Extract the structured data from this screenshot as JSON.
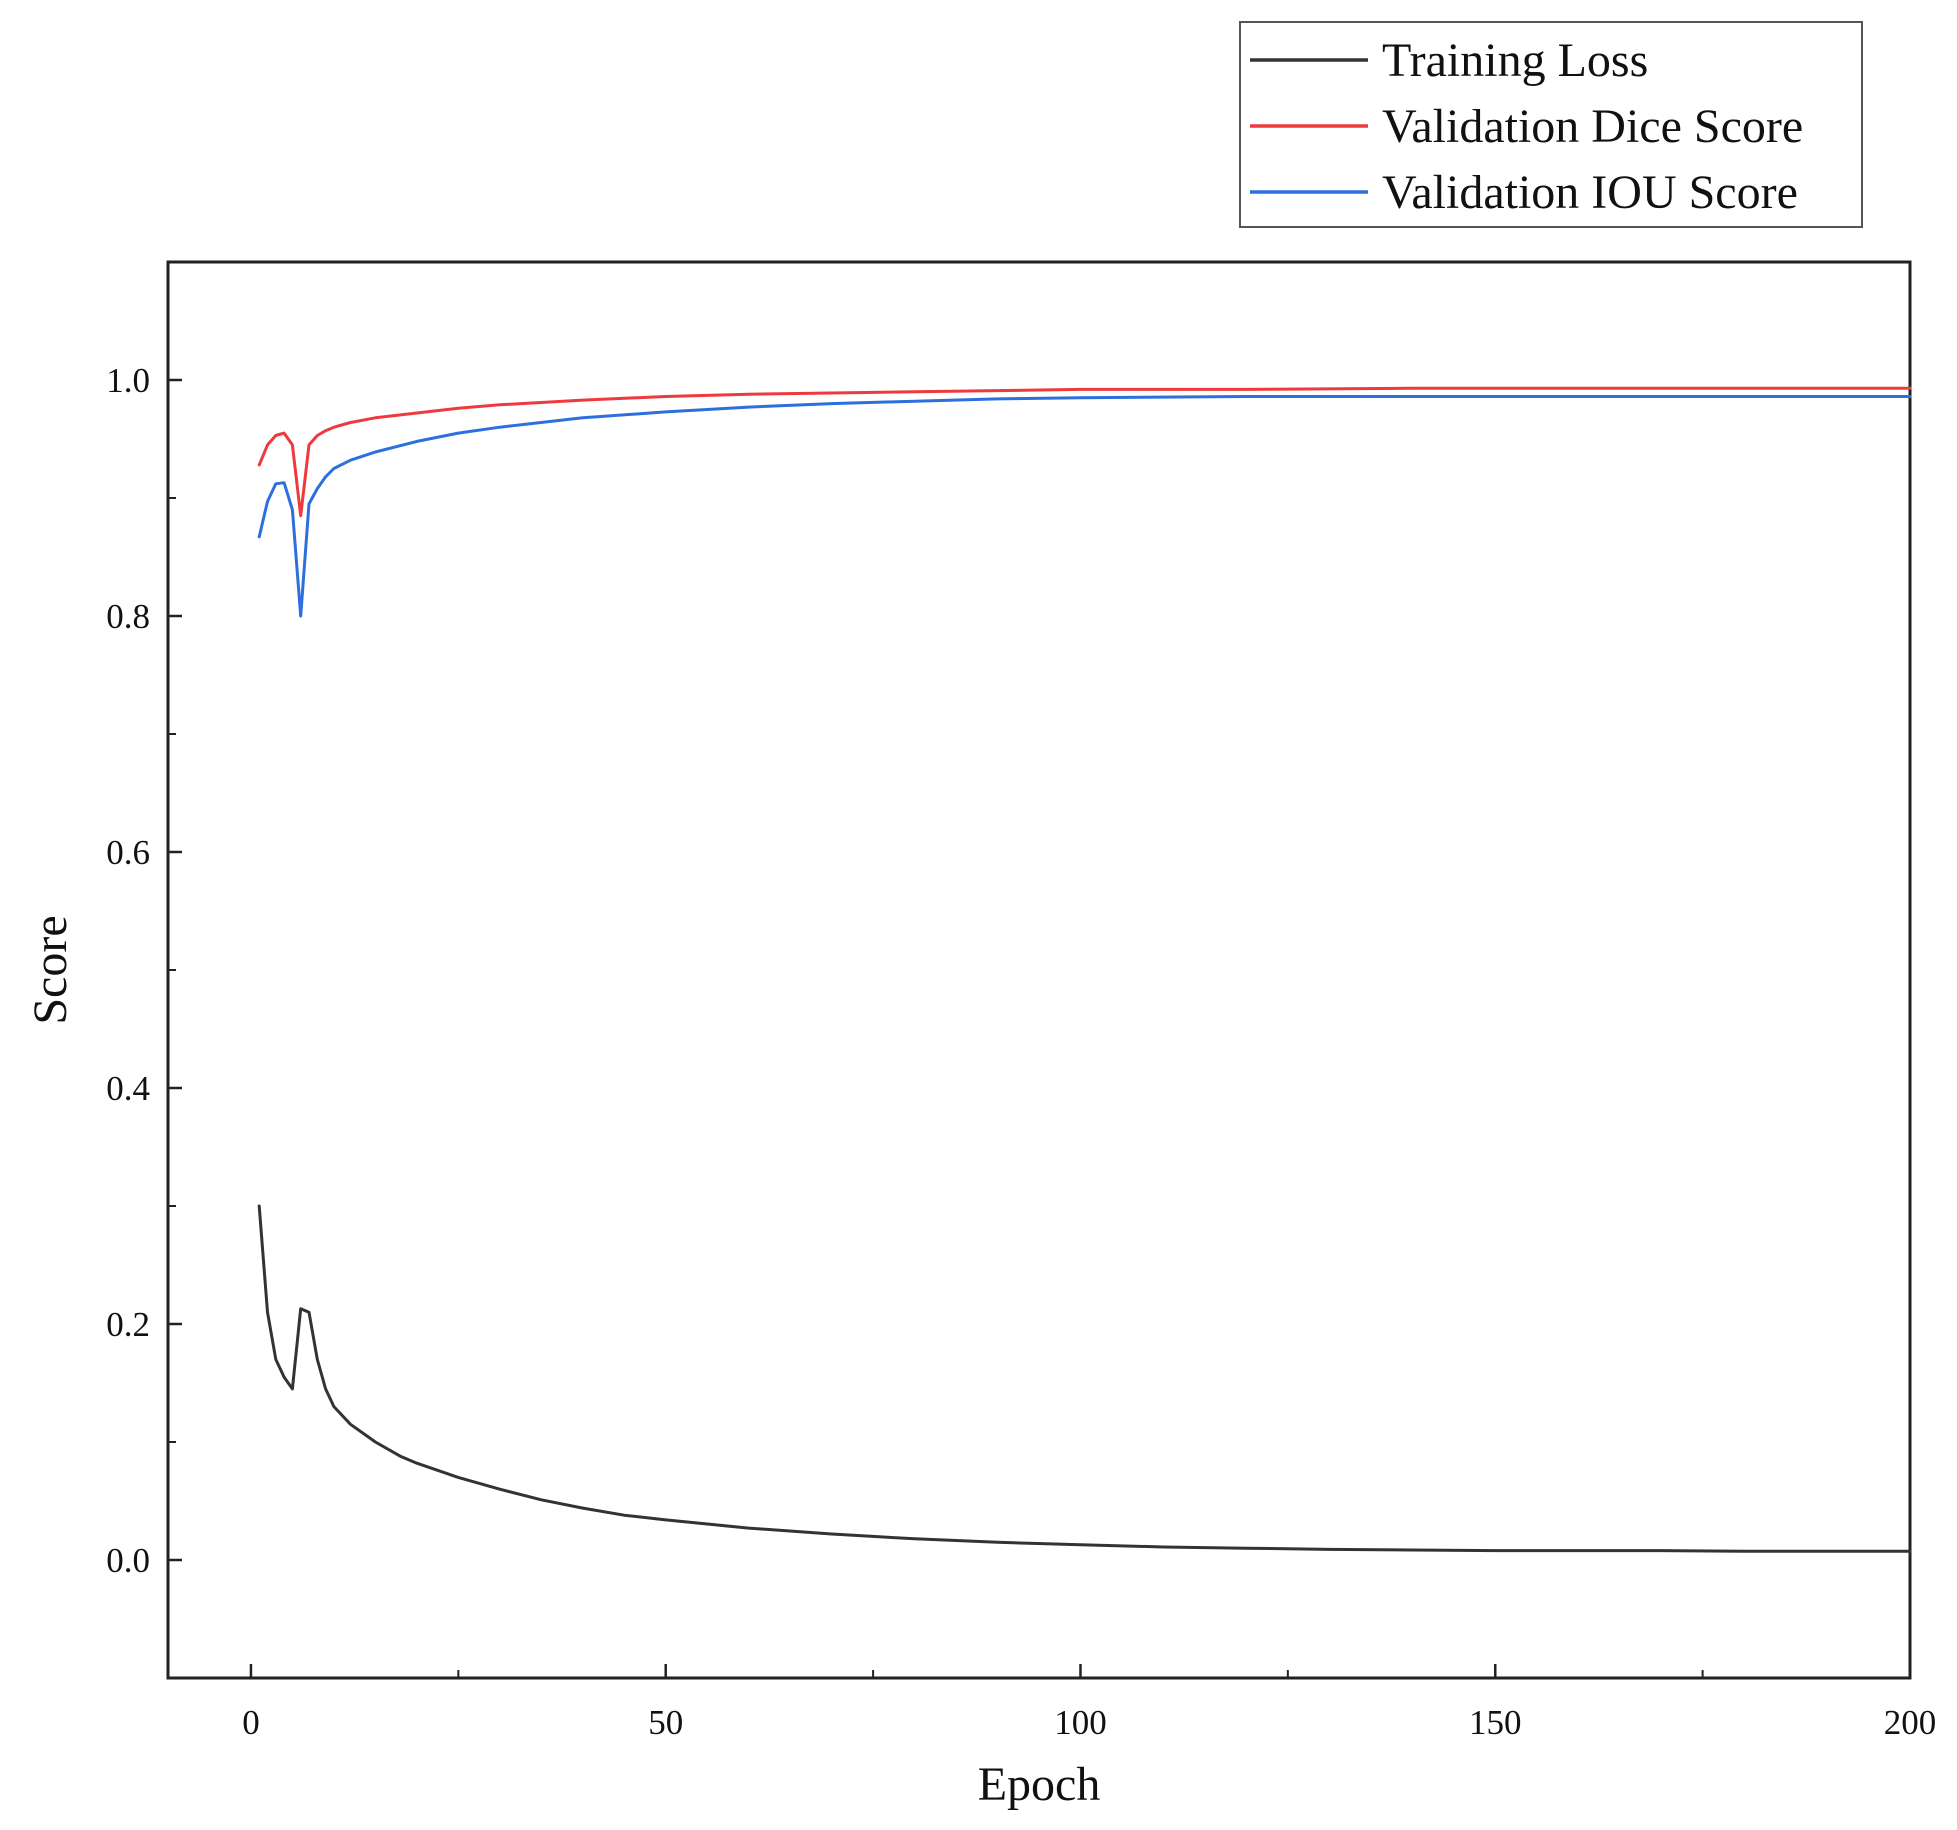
{
  "chart_data": {
    "type": "line",
    "title": "",
    "xlabel": "Epoch",
    "ylabel": "Score",
    "xlim": [
      -10,
      200
    ],
    "ylim": [
      -0.1,
      1.1
    ],
    "x_ticks": [
      {
        "value": 0,
        "label": "0"
      },
      {
        "value": 50,
        "label": "50"
      },
      {
        "value": 100,
        "label": "100"
      },
      {
        "value": 150,
        "label": "150"
      },
      {
        "value": 200,
        "label": "200"
      }
    ],
    "x_minor_ticks": [
      25,
      75,
      125,
      175
    ],
    "y_ticks": [
      {
        "value": 0.0,
        "label": "0.0"
      },
      {
        "value": 0.2,
        "label": "0.2"
      },
      {
        "value": 0.4,
        "label": "0.4"
      },
      {
        "value": 0.6,
        "label": "0.6"
      },
      {
        "value": 0.8,
        "label": "0.8"
      },
      {
        "value": 1.0,
        "label": "1.0"
      }
    ],
    "y_minor_ticks": [
      -0.1,
      0.1,
      0.3,
      0.5,
      0.7,
      0.9,
      1.1
    ],
    "grid": false,
    "legend_position": "top-right, above plot",
    "series": [
      {
        "name": "Training Loss",
        "color": "#333333",
        "x": [
          1,
          2,
          3,
          4,
          5,
          6,
          7,
          8,
          9,
          10,
          12,
          15,
          18,
          20,
          25,
          30,
          35,
          40,
          45,
          50,
          60,
          70,
          80,
          90,
          100,
          110,
          120,
          130,
          140,
          150,
          160,
          170,
          180,
          190,
          200
        ],
        "y": [
          0.3,
          0.21,
          0.17,
          0.155,
          0.145,
          0.213,
          0.21,
          0.17,
          0.145,
          0.13,
          0.115,
          0.1,
          0.088,
          0.082,
          0.07,
          0.06,
          0.051,
          0.044,
          0.038,
          0.034,
          0.027,
          0.022,
          0.018,
          0.015,
          0.013,
          0.011,
          0.01,
          0.009,
          0.0085,
          0.008,
          0.008,
          0.008,
          0.0075,
          0.0075,
          0.0075
        ]
      },
      {
        "name": "Validation Dice Score",
        "color": "#ee3a3e",
        "x": [
          1,
          2,
          3,
          4,
          5,
          6,
          7,
          8,
          9,
          10,
          12,
          15,
          20,
          25,
          30,
          40,
          50,
          60,
          70,
          80,
          90,
          100,
          120,
          140,
          160,
          180,
          200
        ],
        "y": [
          0.928,
          0.945,
          0.953,
          0.955,
          0.945,
          0.885,
          0.945,
          0.953,
          0.957,
          0.96,
          0.964,
          0.968,
          0.972,
          0.976,
          0.979,
          0.983,
          0.986,
          0.988,
          0.989,
          0.99,
          0.991,
          0.992,
          0.992,
          0.993,
          0.993,
          0.993,
          0.993
        ]
      },
      {
        "name": "Validation IOU Score",
        "color": "#2d6fdc",
        "x": [
          1,
          2,
          3,
          4,
          5,
          6,
          7,
          8,
          9,
          10,
          12,
          15,
          20,
          25,
          30,
          40,
          50,
          60,
          70,
          80,
          90,
          100,
          120,
          140,
          160,
          180,
          200
        ],
        "y": [
          0.867,
          0.897,
          0.912,
          0.913,
          0.89,
          0.8,
          0.895,
          0.908,
          0.918,
          0.925,
          0.932,
          0.939,
          0.948,
          0.955,
          0.96,
          0.968,
          0.973,
          0.977,
          0.98,
          0.982,
          0.984,
          0.985,
          0.986,
          0.986,
          0.986,
          0.986,
          0.986
        ]
      }
    ]
  }
}
